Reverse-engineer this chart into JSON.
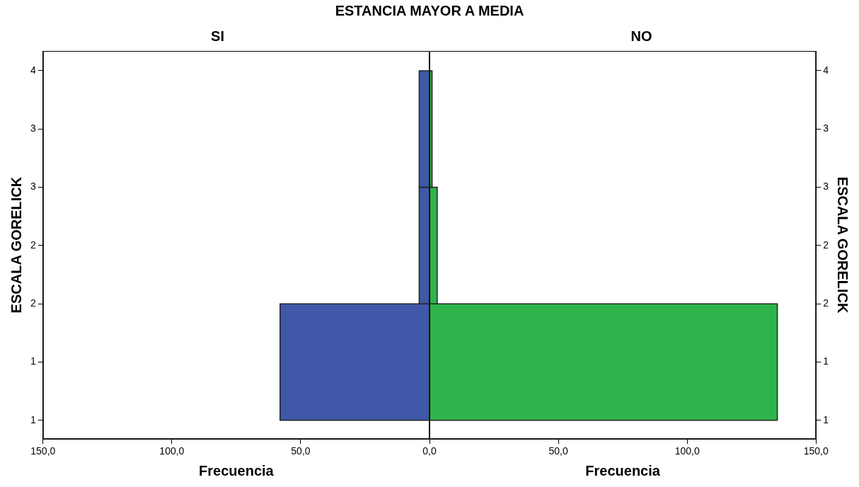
{
  "chart_data": [
    {
      "type": "histogram",
      "title": "ESTANCIA MAYOR A MEDIA",
      "subtitle": "SI",
      "orientation": "horizontal",
      "bins": [
        1,
        2,
        3,
        4
      ],
      "values": [
        58,
        4,
        4
      ],
      "color": "#3f58a8",
      "xlim": [
        150,
        0
      ],
      "xticks": [
        {
          "value": 150,
          "label": "150,0"
        },
        {
          "value": 100,
          "label": "100,0"
        },
        {
          "value": 50,
          "label": "50,0"
        },
        {
          "value": 0,
          "label": null
        }
      ],
      "ylim": [
        0.84,
        4.17
      ],
      "yticks": [
        {
          "value": 1,
          "label": "1"
        },
        {
          "value": 1.5,
          "label": "1"
        },
        {
          "value": 2,
          "label": "2"
        },
        {
          "value": 2.5,
          "label": "2"
        },
        {
          "value": 3,
          "label": "3"
        },
        {
          "value": 3.5,
          "label": "3"
        },
        {
          "value": 4,
          "label": "4"
        }
      ],
      "xlabel": "Frecuencia",
      "ylabel": "ESCALA GORELICK",
      "legend": false,
      "grid": false
    },
    {
      "type": "histogram",
      "subtitle": "NO",
      "orientation": "horizontal",
      "bins": [
        1,
        2,
        3,
        4
      ],
      "values": [
        135,
        3,
        1
      ],
      "color": "#2eb44a",
      "xlim": [
        0,
        150
      ],
      "xticks": [
        {
          "value": 0,
          "label": "0,0"
        },
        {
          "value": 50,
          "label": "50,0"
        },
        {
          "value": 100,
          "label": "100,0"
        },
        {
          "value": 150,
          "label": "150,0"
        }
      ],
      "ylim": [
        0.84,
        4.17
      ],
      "yticks": [
        {
          "value": 1,
          "label": "1"
        },
        {
          "value": 1.5,
          "label": "1"
        },
        {
          "value": 2,
          "label": "2"
        },
        {
          "value": 2.5,
          "label": "2"
        },
        {
          "value": 3,
          "label": "3"
        },
        {
          "value": 3.5,
          "label": "3"
        },
        {
          "value": 4,
          "label": "4"
        }
      ],
      "xlabel": "Frecuencia",
      "ylabel": "ESCALA GORELICK",
      "legend": false,
      "grid": false
    }
  ]
}
